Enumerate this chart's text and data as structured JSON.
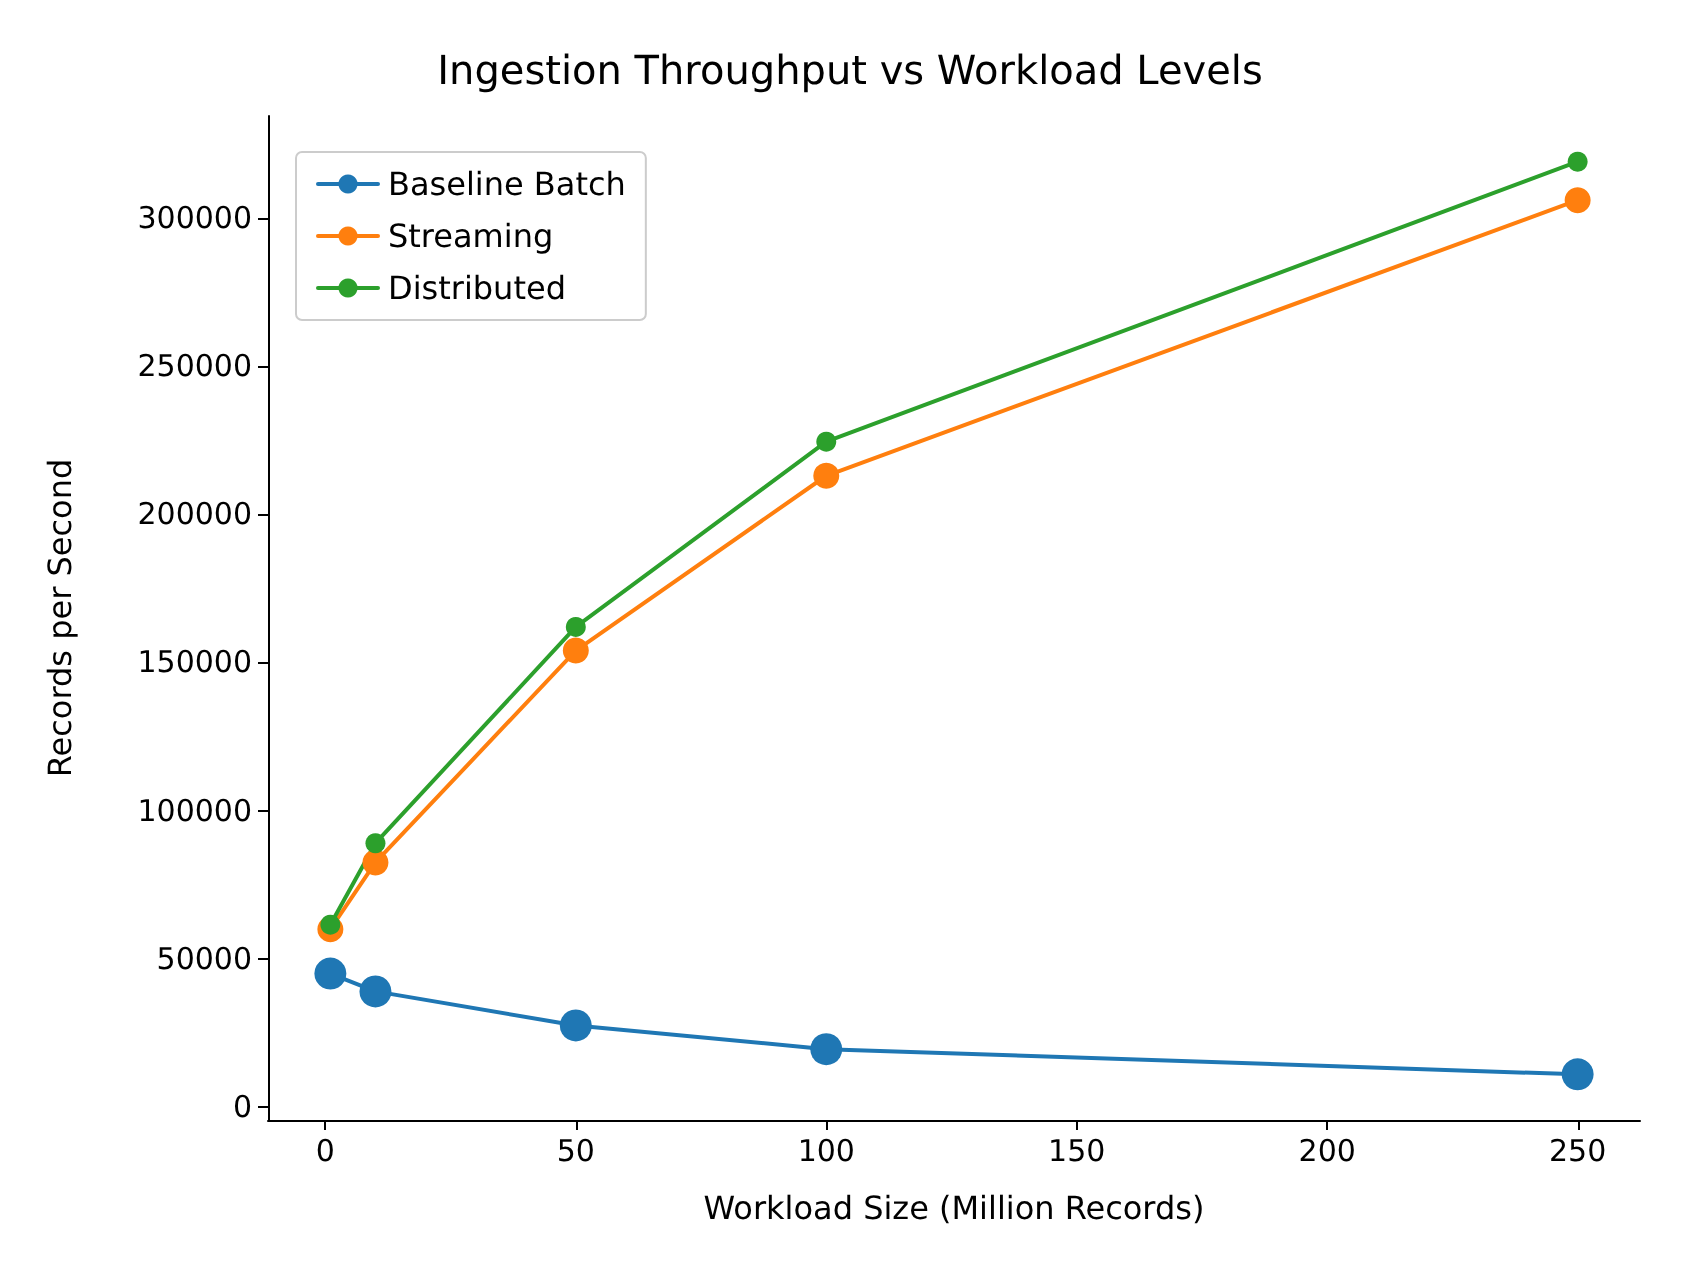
{
  "chart_data": {
    "type": "line",
    "title": "Ingestion Throughput vs Workload Levels",
    "xlabel": "Workload Size (Million Records)",
    "ylabel": "Records per Second",
    "x": [
      1,
      10,
      50,
      100,
      250
    ],
    "series": [
      {
        "name": "Baseline Batch",
        "color": "#1f77b4",
        "values": [
          45000,
          39000,
          27500,
          19500,
          11000
        ]
      },
      {
        "name": "Streaming",
        "color": "#ff7f0e",
        "values": [
          60000,
          82500,
          154000,
          213000,
          306000
        ]
      },
      {
        "name": "Distributed",
        "color": "#2ca02c",
        "values": [
          61500,
          89000,
          162000,
          224500,
          319000
        ]
      }
    ],
    "xlim": [
      -11.45,
      262.45
    ],
    "xticks": [
      0,
      50,
      100,
      150,
      200,
      250
    ],
    "ylim": [
      -4400,
      334400
    ],
    "yticks": [
      0,
      50000,
      100000,
      150000,
      200000,
      250000,
      300000
    ],
    "legend": "top left",
    "marker": "circle",
    "line_style": "solid",
    "grid": false
  }
}
